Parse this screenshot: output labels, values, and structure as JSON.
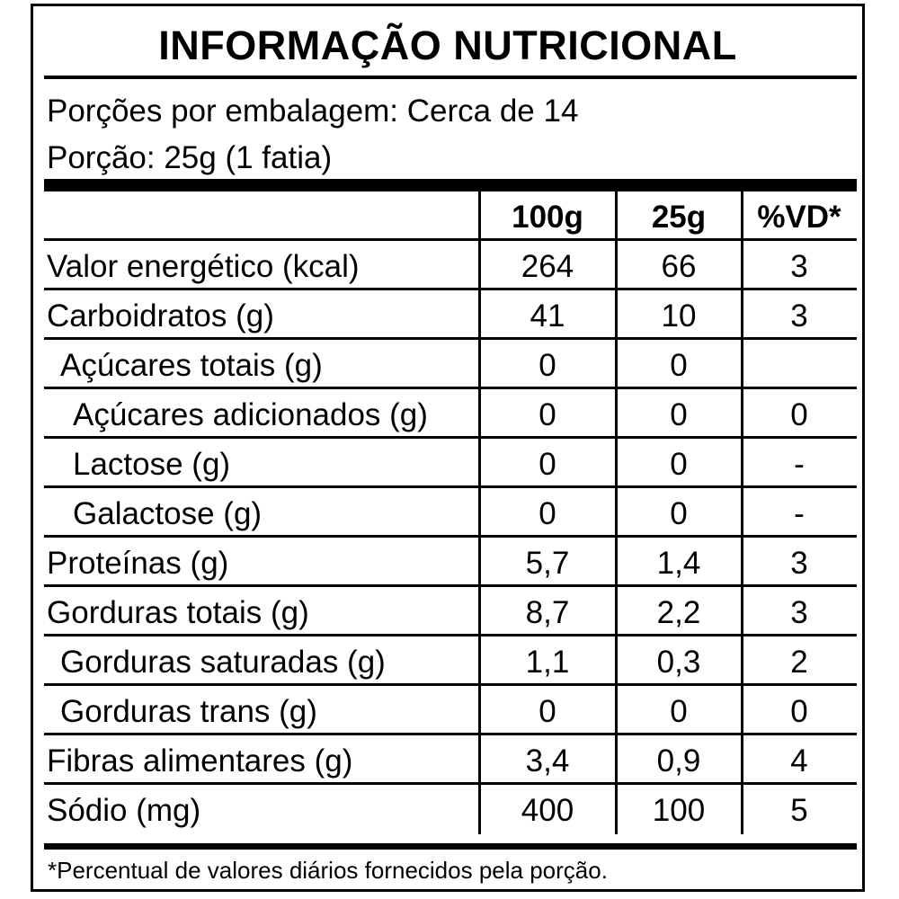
{
  "title": "INFORMAÇÃO NUTRICIONAL",
  "servings_per_package": "Porções por embalagem: Cerca de 14",
  "serving_size": "Porção: 25g (1 fatia)",
  "columns": [
    "100g",
    "25g",
    "%VD*"
  ],
  "rows": [
    {
      "name": "Valor energético (kcal)",
      "indent": 0,
      "values": [
        "264",
        "66",
        "3"
      ]
    },
    {
      "name": "Carboidratos (g)",
      "indent": 0,
      "values": [
        "41",
        "10",
        "3"
      ]
    },
    {
      "name": "Açúcares totais (g)",
      "indent": 1,
      "values": [
        "0",
        "0",
        ""
      ]
    },
    {
      "name": "Açúcares adicionados (g)",
      "indent": 2,
      "values": [
        "0",
        "0",
        "0"
      ]
    },
    {
      "name": "Lactose (g)",
      "indent": 2,
      "values": [
        "0",
        "0",
        "-"
      ]
    },
    {
      "name": "Galactose (g)",
      "indent": 2,
      "values": [
        "0",
        "0",
        "-"
      ]
    },
    {
      "name": "Proteínas (g)",
      "indent": 0,
      "values": [
        "5,7",
        "1,4",
        "3"
      ]
    },
    {
      "name": "Gorduras totais (g)",
      "indent": 0,
      "values": [
        "8,7",
        "2,2",
        "3"
      ]
    },
    {
      "name": "Gorduras saturadas (g)",
      "indent": 1,
      "values": [
        "1,1",
        "0,3",
        "2"
      ]
    },
    {
      "name": "Gorduras trans (g)",
      "indent": 1,
      "values": [
        "0",
        "0",
        "0"
      ]
    },
    {
      "name": "Fibras alimentares (g)",
      "indent": 0,
      "values": [
        "3,4",
        "0,9",
        "4"
      ]
    },
    {
      "name": "Sódio (mg)",
      "indent": 0,
      "values": [
        "400",
        "100",
        "5"
      ]
    }
  ],
  "footnote": "*Percentual de valores diários fornecidos pela porção."
}
